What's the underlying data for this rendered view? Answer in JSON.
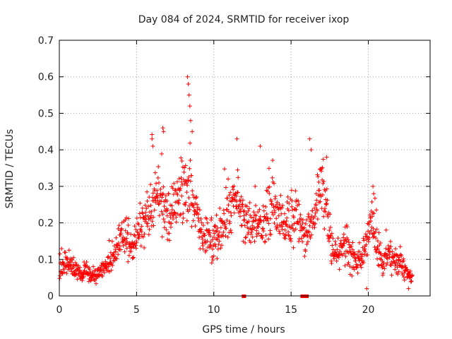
{
  "chart_data": {
    "type": "scatter",
    "title": "Day 084 of 2024, SRMTID for receiver ixop",
    "xlabel": "GPS time / hours",
    "ylabel": "SRMTID / TECUs",
    "xlim": [
      0,
      24
    ],
    "ylim": [
      0,
      0.7
    ],
    "xticks": [
      0,
      5,
      10,
      15,
      20
    ],
    "yticks": [
      0,
      0.1,
      0.2,
      0.3,
      0.4,
      0.5,
      0.6,
      0.7
    ],
    "xtick_labels": [
      "0",
      "5",
      "10",
      "15",
      "20"
    ],
    "ytick_labels": [
      "0",
      "0.1",
      "0.2",
      "0.3",
      "0.4",
      "0.5",
      "0.6",
      "0.7"
    ],
    "grid": true,
    "marker": "+",
    "color": "#ff0000",
    "series": [
      {
        "name": "SRMTID",
        "x": [
          0.0,
          0.25,
          0.5,
          0.75,
          1.0,
          1.25,
          1.5,
          1.75,
          2.0,
          2.25,
          2.5,
          2.75,
          3.0,
          3.25,
          3.5,
          3.75,
          4.0,
          4.25,
          4.5,
          4.75,
          5.0,
          5.25,
          5.5,
          5.75,
          6.0,
          6.25,
          6.5,
          6.75,
          7.0,
          7.25,
          7.5,
          7.75,
          8.0,
          8.25,
          8.5,
          8.75,
          9.0,
          9.25,
          9.5,
          9.75,
          10.0,
          10.25,
          10.5,
          10.75,
          11.0,
          11.25,
          11.5,
          11.75,
          12.0,
          12.25,
          12.5,
          12.75,
          13.0,
          13.25,
          13.5,
          13.75,
          14.0,
          14.25,
          14.5,
          14.75,
          15.0,
          15.25,
          15.5,
          15.75,
          16.0,
          16.25,
          16.5,
          16.75,
          17.0,
          17.25,
          17.5,
          17.75,
          18.0,
          18.25,
          18.5,
          18.75,
          19.0,
          19.25,
          19.5,
          19.75,
          20.0,
          20.25,
          20.5,
          20.75,
          21.0,
          21.25,
          21.5,
          21.75,
          22.0,
          22.25,
          22.5,
          22.75
        ],
        "center": [
          0.07,
          0.08,
          0.09,
          0.08,
          0.07,
          0.06,
          0.06,
          0.07,
          0.05,
          0.05,
          0.06,
          0.07,
          0.08,
          0.09,
          0.1,
          0.14,
          0.17,
          0.16,
          0.14,
          0.13,
          0.16,
          0.18,
          0.2,
          0.22,
          0.25,
          0.27,
          0.27,
          0.24,
          0.21,
          0.22,
          0.24,
          0.26,
          0.3,
          0.32,
          0.31,
          0.24,
          0.2,
          0.17,
          0.16,
          0.15,
          0.15,
          0.17,
          0.19,
          0.21,
          0.24,
          0.26,
          0.25,
          0.24,
          0.22,
          0.21,
          0.2,
          0.19,
          0.18,
          0.2,
          0.22,
          0.23,
          0.24,
          0.22,
          0.2,
          0.19,
          0.2,
          0.22,
          0.21,
          0.17,
          0.16,
          0.18,
          0.22,
          0.26,
          0.29,
          0.25,
          0.17,
          0.13,
          0.12,
          0.13,
          0.15,
          0.12,
          0.1,
          0.09,
          0.09,
          0.11,
          0.17,
          0.22,
          0.14,
          0.11,
          0.1,
          0.12,
          0.1,
          0.09,
          0.09,
          0.08,
          0.06,
          0.05
        ],
        "spread": [
          0.02,
          0.025,
          0.025,
          0.025,
          0.02,
          0.02,
          0.025,
          0.025,
          0.02,
          0.02,
          0.02,
          0.02,
          0.025,
          0.025,
          0.03,
          0.035,
          0.04,
          0.04,
          0.035,
          0.035,
          0.04,
          0.045,
          0.05,
          0.06,
          0.07,
          0.08,
          0.08,
          0.07,
          0.06,
          0.06,
          0.06,
          0.07,
          0.09,
          0.1,
          0.09,
          0.07,
          0.06,
          0.05,
          0.05,
          0.05,
          0.05,
          0.05,
          0.055,
          0.06,
          0.065,
          0.07,
          0.065,
          0.06,
          0.06,
          0.055,
          0.055,
          0.05,
          0.05,
          0.055,
          0.06,
          0.06,
          0.06,
          0.06,
          0.05,
          0.05,
          0.05,
          0.055,
          0.055,
          0.05,
          0.05,
          0.05,
          0.055,
          0.06,
          0.06,
          0.06,
          0.05,
          0.04,
          0.04,
          0.04,
          0.045,
          0.04,
          0.035,
          0.035,
          0.035,
          0.035,
          0.05,
          0.05,
          0.04,
          0.035,
          0.03,
          0.035,
          0.03,
          0.03,
          0.03,
          0.025,
          0.025,
          0.02
        ],
        "peaks": [
          {
            "x": 8.3,
            "y": 0.6
          },
          {
            "x": 8.35,
            "y": 0.58
          },
          {
            "x": 8.4,
            "y": 0.55
          },
          {
            "x": 8.45,
            "y": 0.52
          },
          {
            "x": 8.5,
            "y": 0.48
          },
          {
            "x": 6.0,
            "y": 0.43
          },
          {
            "x": 6.05,
            "y": 0.41
          },
          {
            "x": 6.7,
            "y": 0.46
          },
          {
            "x": 6.75,
            "y": 0.45
          },
          {
            "x": 8.6,
            "y": 0.45
          },
          {
            "x": 11.5,
            "y": 0.43
          },
          {
            "x": 13.0,
            "y": 0.41
          },
          {
            "x": 16.2,
            "y": 0.43
          },
          {
            "x": 16.3,
            "y": 0.4
          },
          {
            "x": 17.3,
            "y": 0.38
          },
          {
            "x": 20.3,
            "y": 0.3
          },
          {
            "x": 20.35,
            "y": 0.28
          },
          {
            "x": 19.9,
            "y": 0.02
          },
          {
            "x": 22.6,
            "y": 0.02
          }
        ],
        "gaps_x": [
          11.9,
          11.95,
          15.7,
          15.75,
          15.8,
          15.85,
          15.9,
          15.95,
          16.0
        ]
      }
    ]
  }
}
